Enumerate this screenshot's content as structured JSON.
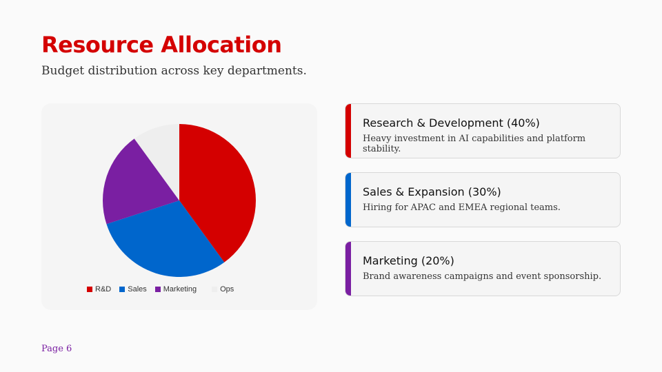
{
  "header": {
    "title": "Resource Allocation",
    "subtitle": "Budget distribution across key departments."
  },
  "chart_data": {
    "type": "pie",
    "categories": [
      "R&D",
      "Sales",
      "Marketing",
      "Ops"
    ],
    "values": [
      40,
      30,
      20,
      10
    ],
    "colors": [
      "#d40000",
      "#0066cc",
      "#7a1fa2",
      "#eeeeee"
    ],
    "legend": "bottom"
  },
  "cards": [
    {
      "title": "Research & Development (40%)",
      "desc": "Heavy investment in AI capabilities and platform stability.",
      "color": "#d40000"
    },
    {
      "title": "Sales & Expansion (30%)",
      "desc": "Hiring for APAC and EMEA regional teams.",
      "color": "#0066cc"
    },
    {
      "title": "Marketing (20%)",
      "desc": "Brand awareness campaigns and event sponsorship.",
      "color": "#7a1fa2"
    }
  ],
  "footer": {
    "page": "Page 6"
  }
}
